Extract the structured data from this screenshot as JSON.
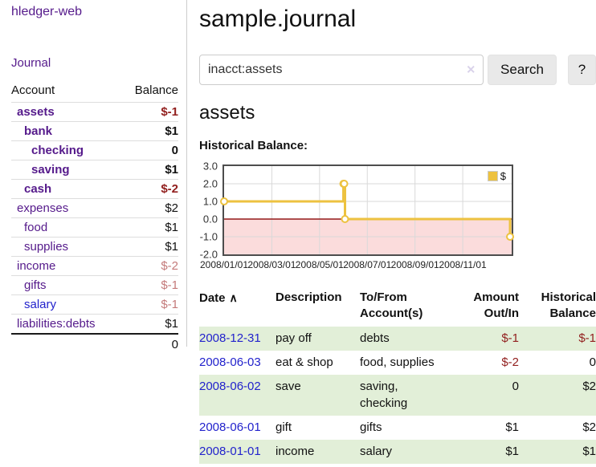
{
  "colors": {
    "link_purple": "#551a8b",
    "link_blue": "#2222cc",
    "negative_strong": "#92201f",
    "negative_soft": "#c47a7a",
    "row_green": "#e2efd8",
    "accent_gold": "#edc240",
    "chart_negative_bg": "#fbdcdc",
    "chart_zero_line": "#941a1a",
    "chart_gridline": "#d9d9d9"
  },
  "sidebar": {
    "brand": "hledger-web",
    "nav_journal": "Journal",
    "headers": {
      "account": "Account",
      "balance": "Balance"
    },
    "accounts": [
      {
        "name": "assets",
        "balance": "$-1",
        "level": 1,
        "selected": true,
        "name_color": "purple",
        "balance_color": "neg-strong"
      },
      {
        "name": "bank",
        "balance": "$1",
        "level": 2,
        "selected": true,
        "name_color": "purple",
        "balance_color": ""
      },
      {
        "name": "checking",
        "balance": "0",
        "level": 3,
        "selected": true,
        "name_color": "purple",
        "balance_color": ""
      },
      {
        "name": "saving",
        "balance": "$1",
        "level": 3,
        "selected": true,
        "name_color": "purple",
        "balance_color": ""
      },
      {
        "name": "cash",
        "balance": "$-2",
        "level": 2,
        "selected": true,
        "name_color": "purple",
        "balance_color": "neg-strong"
      },
      {
        "name": "expenses",
        "balance": "$2",
        "level": 1,
        "selected": false,
        "name_color": "purple",
        "balance_color": ""
      },
      {
        "name": "food",
        "balance": "$1",
        "level": 2,
        "selected": false,
        "name_color": "purple",
        "balance_color": ""
      },
      {
        "name": "supplies",
        "balance": "$1",
        "level": 2,
        "selected": false,
        "name_color": "purple",
        "balance_color": ""
      },
      {
        "name": "income",
        "balance": "$-2",
        "level": 1,
        "selected": false,
        "name_color": "purple",
        "balance_color": "neg-soft"
      },
      {
        "name": "gifts",
        "balance": "$-1",
        "level": 2,
        "selected": false,
        "name_color": "purple",
        "balance_color": "neg-soft"
      },
      {
        "name": "salary",
        "balance": "$-1",
        "level": 2,
        "selected": false,
        "name_color": "blue",
        "balance_color": "neg-soft"
      },
      {
        "name": "liabilities:debts",
        "balance": "$1",
        "level": 1,
        "selected": false,
        "name_color": "purple",
        "balance_color": ""
      }
    ],
    "total": "0"
  },
  "main": {
    "title": "sample.journal",
    "search": {
      "query": "inacct:assets",
      "clear_icon": "✕",
      "button_label": "Search",
      "help_label": "?"
    },
    "account_heading": "assets"
  },
  "chart_data": {
    "type": "line",
    "style": "step",
    "title": "Historical Balance:",
    "series": [
      {
        "name": "$",
        "points": [
          {
            "x": "2008-01-01",
            "y": 1
          },
          {
            "x": "2008-06-01",
            "y": 2
          },
          {
            "x": "2008-06-02",
            "y": 2
          },
          {
            "x": "2008-06-03",
            "y": 0
          },
          {
            "x": "2008-12-31",
            "y": -1
          }
        ]
      }
    ],
    "ylim": [
      -2.0,
      3.0
    ],
    "yticks": [
      "3.0",
      "2.0",
      "1.0",
      "0.0",
      "-1.0",
      "-2.0"
    ],
    "xticks": [
      "2008/01/01",
      "2008/03/01",
      "2008/05/01",
      "2008/07/01",
      "2008/09/01",
      "2008/11/01"
    ],
    "legend": {
      "entries": [
        "$"
      ],
      "position": "top-right"
    },
    "grid": true,
    "negative_region_shaded": true
  },
  "register": {
    "sort_icon": "∧",
    "headers": [
      {
        "label": "Date",
        "align": "left",
        "sorted": "asc"
      },
      {
        "label": "Description",
        "align": "left"
      },
      {
        "label": "To/From Account(s)",
        "align": "left"
      },
      {
        "label": "Amount Out/In",
        "align": "right"
      },
      {
        "label": "Historical Balance",
        "align": "right"
      }
    ],
    "rows": [
      {
        "date": "2008-12-31",
        "description": "pay off",
        "accounts": "debts",
        "amount": "$-1",
        "amount_negative": true,
        "balance": "$-1",
        "balance_negative": true
      },
      {
        "date": "2008-06-03",
        "description": "eat & shop",
        "accounts": "food, supplies",
        "amount": "$-2",
        "amount_negative": true,
        "balance": "0",
        "balance_negative": false
      },
      {
        "date": "2008-06-02",
        "description": "save",
        "accounts": "saving, checking",
        "amount": "0",
        "amount_negative": false,
        "balance": "$2",
        "balance_negative": false
      },
      {
        "date": "2008-06-01",
        "description": "gift",
        "accounts": "gifts",
        "amount": "$1",
        "amount_negative": false,
        "balance": "$2",
        "balance_negative": false
      },
      {
        "date": "2008-01-01",
        "description": "income",
        "accounts": "salary",
        "amount": "$1",
        "amount_negative": false,
        "balance": "$1",
        "balance_negative": false
      }
    ]
  }
}
